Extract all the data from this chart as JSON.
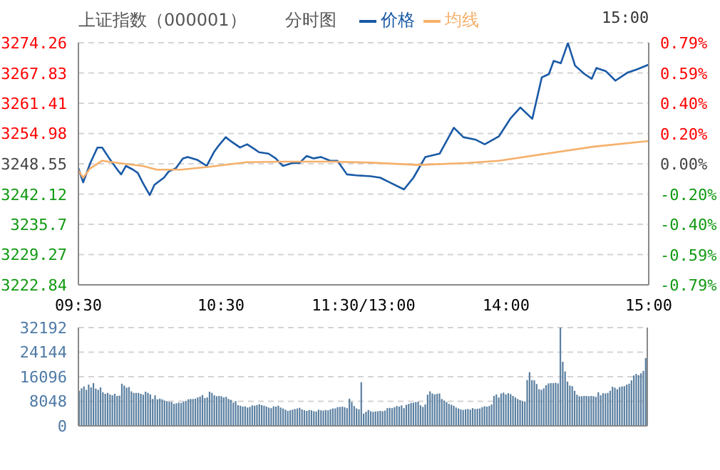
{
  "chart_data": [
    {
      "type": "line",
      "title": "上证指数（000001）",
      "subtitle": "分时图",
      "annotations": [
        "15:00"
      ],
      "legend": "top",
      "grid": "y",
      "marker": "none",
      "line_style": "solid",
      "categories": [
        "09:30",
        null,
        null,
        null,
        null,
        null,
        null,
        null,
        null,
        null,
        null,
        null,
        null,
        null,
        null,
        null,
        null,
        null,
        null,
        null,
        null,
        null,
        null,
        null,
        null,
        null,
        null,
        null,
        null,
        null,
        null,
        null,
        null,
        null,
        null,
        null,
        null,
        null,
        null,
        null,
        null,
        null,
        null,
        null,
        null,
        null,
        null,
        null,
        null,
        null,
        null,
        null,
        null,
        null,
        null,
        null,
        null,
        null,
        null,
        null,
        "10:30",
        null,
        null,
        null,
        null,
        null,
        null,
        null,
        null,
        null,
        null,
        null,
        null,
        null,
        null,
        null,
        null,
        null,
        null,
        null,
        null,
        null,
        null,
        null,
        null,
        null,
        null,
        null,
        null,
        null,
        null,
        null,
        null,
        null,
        null,
        null,
        null,
        null,
        null,
        null,
        null,
        null,
        null,
        null,
        null,
        null,
        null,
        null,
        null,
        null,
        null,
        null,
        null,
        null,
        null,
        null,
        null,
        null,
        null,
        null,
        "11:30/13:00",
        null,
        null,
        null,
        null,
        null,
        null,
        null,
        null,
        null,
        null,
        null,
        null,
        null,
        null,
        null,
        null,
        null,
        null,
        null,
        null,
        null,
        null,
        null,
        null,
        null,
        null,
        null,
        null,
        null,
        null,
        null,
        null,
        null,
        null,
        null,
        null,
        null,
        null,
        null,
        null,
        null,
        null,
        null,
        null,
        null,
        null,
        null,
        null,
        null,
        null,
        null,
        null,
        null,
        null,
        null,
        null,
        null,
        null,
        null,
        "14:00",
        null,
        null,
        null,
        null,
        null,
        null,
        null,
        null,
        null,
        null,
        null,
        null,
        null,
        null,
        null,
        null,
        null,
        null,
        null,
        null,
        null,
        null,
        null,
        null,
        null,
        null,
        null,
        null,
        null,
        null,
        null,
        null,
        null,
        null,
        null,
        null,
        null,
        null,
        null,
        null,
        null,
        null,
        null,
        null,
        null,
        null,
        null,
        null,
        null,
        null,
        null,
        null,
        null,
        null,
        null,
        null,
        null,
        null,
        null,
        "15:00"
      ],
      "ylim": [
        3222.84,
        3274.26
      ],
      "yticks": [
        3222.84,
        3229.27,
        3235.7,
        3242.12,
        3248.55,
        3254.98,
        3261.41,
        3267.83,
        3274.26
      ],
      "y2lim": [
        -0.79,
        0.79
      ],
      "y2ticks": [
        {
          "value": -0.79,
          "label": "-0.79%"
        },
        {
          "value": -0.5925,
          "label": "-0.59%"
        },
        {
          "value": -0.395,
          "label": "-0.40%"
        },
        {
          "value": -0.1975,
          "label": "-0.20%"
        },
        {
          "value": 0,
          "label": "0.00%"
        },
        {
          "value": 0.1975,
          "label": "0.20%"
        },
        {
          "value": 0.395,
          "label": "0.40%"
        },
        {
          "value": 0.5925,
          "label": "0.59%"
        },
        {
          "value": 0.79,
          "label": "0.79%"
        }
      ],
      "series": [
        {
          "name": "价格",
          "color": "#1a5aa6",
          "values": [
            3247.6,
            null,
            3244.6,
            null,
            null,
            3248.7,
            null,
            null,
            3252.0,
            null,
            3252.0,
            null,
            null,
            3249.7,
            null,
            null,
            null,
            3246.9,
            3246.3,
            null,
            3248.1,
            null,
            null,
            3247.3,
            null,
            3246.6,
            null,
            3244.6,
            null,
            null,
            3241.9,
            null,
            3244.1,
            null,
            null,
            null,
            3245.6,
            null,
            3246.9,
            null,
            null,
            3247.6,
            null,
            null,
            3249.7,
            null,
            3250.0,
            null,
            null,
            null,
            3249.4,
            null,
            null,
            null,
            3248.1,
            null,
            null,
            3251.0,
            null,
            3252.4,
            null,
            null,
            3254.2,
            null,
            3253.4,
            null,
            null,
            null,
            3252.0,
            null,
            null,
            3252.7,
            null,
            null,
            3251.7,
            null,
            3251.0,
            null,
            null,
            null,
            3250.7,
            null,
            null,
            3249.7,
            null,
            null,
            3248.1,
            null,
            null,
            null,
            3248.7,
            null,
            null,
            3248.7,
            null,
            null,
            3250.2,
            null,
            null,
            3249.7,
            null,
            null,
            3250.0,
            null,
            null,
            null,
            3249.2,
            null,
            null,
            3249.2,
            null,
            null,
            null,
            3246.3,
            null,
            null,
            null,
            3246.1,
            null,
            null,
            null,
            null,
            null,
            3245.9,
            null,
            null,
            null,
            3245.6,
            null,
            null,
            null,
            3244.6,
            null,
            null,
            null,
            null,
            null,
            3243.1,
            null,
            null,
            null,
            3245.6,
            null,
            null,
            null,
            null,
            3250.0,
            null,
            null,
            null,
            null,
            null,
            3250.7,
            null,
            null,
            null,
            null,
            null,
            3256.2,
            null,
            null,
            null,
            3254.2,
            null,
            null,
            null,
            null,
            3253.7,
            null,
            null,
            null,
            3252.7,
            null,
            null,
            null,
            null,
            null,
            3254.4,
            null,
            null,
            null,
            null,
            3258.3,
            null,
            null,
            null,
            3260.5,
            null,
            null,
            null,
            null,
            3258.1,
            null,
            null,
            null,
            3266.9,
            null,
            null,
            3267.6,
            null,
            3270.4,
            null,
            null,
            3269.9,
            null,
            null,
            3274.2,
            null,
            null,
            3269.4,
            null,
            null,
            null,
            3267.6,
            null,
            null,
            3266.6,
            null,
            3268.9,
            null,
            null,
            null,
            3268.2,
            null,
            null,
            null,
            3266.2,
            null,
            null,
            null,
            null,
            3267.9,
            null,
            null,
            null,
            3268.6,
            null,
            null,
            null,
            null,
            3269.6
          ]
        },
        {
          "name": "均线",
          "color": "#f5b06b",
          "values": [
            3247.1,
            null,
            3245.6,
            null,
            null,
            3247.6,
            null,
            null,
            null,
            null,
            3249.2,
            null,
            null,
            null,
            null,
            null,
            null,
            3248.7,
            null,
            null,
            null,
            null,
            null,
            null,
            null,
            null,
            null,
            3248.1,
            null,
            null,
            null,
            null,
            null,
            3247.3,
            null,
            null,
            null,
            null,
            null,
            null,
            null,
            null,
            null,
            3247.3,
            null,
            null,
            null,
            null,
            null,
            null,
            null,
            null,
            null,
            null,
            null,
            3247.9,
            null,
            null,
            null,
            null,
            null,
            null,
            null,
            null,
            null,
            null,
            null,
            null,
            null,
            null,
            null,
            3248.9,
            null,
            null,
            null,
            null,
            null,
            null,
            null,
            null,
            null,
            null,
            null,
            null,
            null,
            null,
            null,
            3249.0,
            null,
            null,
            null,
            null,
            null,
            null,
            null,
            null,
            null,
            null,
            null,
            null,
            null,
            null,
            null,
            null,
            null,
            null,
            null,
            3249.0,
            null,
            null,
            null,
            null,
            null,
            null,
            null,
            null,
            null,
            null,
            null,
            null,
            null,
            null,
            null,
            3248.8,
            null,
            null,
            null,
            null,
            null,
            null,
            null,
            null,
            null,
            null,
            null,
            null,
            null,
            null,
            null,
            null,
            null,
            null,
            null,
            3248.3,
            null,
            null,
            null,
            null,
            null,
            null,
            null,
            null,
            null,
            null,
            null,
            null,
            null,
            null,
            null,
            null,
            null,
            null,
            null,
            3248.7,
            null,
            null,
            null,
            null,
            null,
            null,
            null,
            null,
            null,
            null,
            null,
            null,
            null,
            3249.2,
            null,
            null,
            null,
            null,
            null,
            null,
            null,
            null,
            null,
            null,
            null,
            null,
            null,
            null,
            null,
            null,
            null,
            null,
            null,
            3250.7,
            null,
            null,
            null,
            null,
            null,
            null,
            null,
            null,
            null,
            null,
            null,
            null,
            null,
            null,
            null,
            null,
            null,
            null,
            null,
            3252.2,
            null,
            null,
            null,
            null,
            null,
            null,
            null,
            null,
            null,
            null,
            null,
            null,
            null,
            null,
            null,
            null,
            null,
            null,
            null,
            null,
            null,
            null,
            3253.4
          ]
        }
      ]
    },
    {
      "type": "bar",
      "grid": "y",
      "tick_labels": "y",
      "categories": [
        null,
        null,
        null,
        null,
        null,
        null,
        null,
        null,
        null,
        null,
        null,
        null,
        null,
        null,
        null,
        null,
        null,
        null,
        null,
        null,
        null,
        null,
        null,
        null,
        null,
        null,
        null,
        null,
        null,
        null,
        null,
        null,
        null,
        null,
        null,
        null,
        null,
        null,
        null,
        null,
        null,
        null,
        null,
        null,
        null,
        null,
        null,
        null,
        null,
        null,
        null,
        null,
        null,
        null,
        null,
        null,
        null,
        null,
        null,
        null,
        null,
        null,
        null,
        null,
        null,
        null,
        null,
        null,
        null,
        null,
        null,
        null,
        null,
        null,
        null,
        null,
        null,
        null,
        null,
        null,
        null,
        null,
        null,
        null,
        null,
        null,
        null,
        null,
        null,
        null,
        null,
        null,
        null,
        null,
        null,
        null,
        null,
        null,
        null,
        null,
        null,
        null,
        null,
        null,
        null,
        null,
        null,
        null,
        null,
        null,
        null,
        null,
        null,
        null,
        null,
        null,
        null,
        null,
        null,
        null,
        null,
        null,
        null,
        null,
        null,
        null,
        null,
        null,
        null,
        null,
        null,
        null,
        null,
        null,
        null,
        null,
        null,
        null,
        null,
        null,
        null,
        null,
        null,
        null,
        null,
        null,
        null,
        null,
        null,
        null,
        null,
        null,
        null,
        null,
        null,
        null,
        null,
        null,
        null,
        null,
        null,
        null,
        null,
        null,
        null,
        null,
        null,
        null,
        null,
        null,
        null,
        null,
        null,
        null,
        null,
        null,
        null,
        null,
        null,
        null,
        null,
        null,
        null,
        null,
        null,
        null,
        null,
        null,
        null,
        null,
        null,
        null,
        null,
        null,
        null,
        null,
        null,
        null,
        null,
        null,
        null,
        null,
        null,
        null,
        null,
        null,
        null,
        null,
        null,
        null,
        null,
        null,
        null,
        null,
        null,
        null,
        null,
        null,
        null,
        null,
        null,
        null,
        null,
        null,
        null,
        null,
        null,
        null,
        null,
        null,
        null,
        null,
        null,
        null,
        null,
        null,
        null,
        null,
        null,
        null
      ],
      "ylim": [
        0,
        32192
      ],
      "yticks": [
        0,
        8048,
        16096,
        24144,
        32192
      ],
      "color": "#5a7fa0",
      "values": [
        11500,
        12300,
        12900,
        11800,
        13500,
        12600,
        14000,
        12200,
        11800,
        12600,
        11000,
        10500,
        10800,
        10300,
        10000,
        10500,
        9800,
        9900,
        13800,
        13200,
        12500,
        12700,
        11300,
        10800,
        10800,
        10800,
        10500,
        10200,
        11200,
        10800,
        10300,
        8800,
        10000,
        8700,
        8900,
        8700,
        8300,
        8100,
        7900,
        7800,
        7200,
        7400,
        7600,
        7500,
        7900,
        8200,
        8700,
        8800,
        8800,
        8900,
        9300,
        9600,
        10100,
        9100,
        9300,
        11200,
        10800,
        10000,
        9700,
        9800,
        9700,
        9300,
        9500,
        8800,
        8500,
        7600,
        8100,
        6800,
        6600,
        6300,
        6400,
        6000,
        6200,
        6700,
        6600,
        6800,
        7100,
        6800,
        6600,
        6300,
        6000,
        5800,
        6400,
        6300,
        6600,
        6000,
        5700,
        5300,
        4900,
        5100,
        5300,
        5500,
        5700,
        5900,
        5400,
        5100,
        4900,
        5200,
        5100,
        4800,
        4700,
        5300,
        5100,
        5000,
        5200,
        5100,
        5400,
        5700,
        5700,
        6100,
        6200,
        6300,
        6100,
        5800,
        8900,
        7800,
        6500,
        5700,
        5400,
        14300,
        4000,
        4600,
        5200,
        4800,
        4600,
        4700,
        4800,
        4900,
        4800,
        5000,
        5800,
        5900,
        5800,
        6100,
        6500,
        6300,
        6700,
        5800,
        6900,
        7200,
        7500,
        7600,
        7800,
        7900,
        6700,
        6200,
        7000,
        10200,
        11300,
        10600,
        10300,
        10500,
        10600,
        8800,
        8300,
        7800,
        7200,
        6900,
        6600,
        6000,
        5700,
        5400,
        5200,
        5400,
        5500,
        5300,
        5800,
        5500,
        5600,
        5700,
        6100,
        6400,
        6300,
        6500,
        7000,
        9800,
        10300,
        9300,
        10600,
        10900,
        10300,
        10700,
        10400,
        9800,
        9300,
        8800,
        8400,
        8100,
        8000,
        15000,
        17600,
        15000,
        14900,
        13700,
        12000,
        11800,
        12300,
        13300,
        13900,
        14000,
        14000,
        14100,
        13900,
        32192,
        21000,
        17800,
        14500,
        13200,
        13000,
        11500,
        10200,
        9700,
        9700,
        9800,
        9800,
        9700,
        9800,
        9700,
        9500,
        11000,
        10000,
        10700,
        10600,
        10800,
        11500,
        12800,
        12500,
        12000,
        12700,
        12900,
        13000,
        13500,
        13800,
        14900,
        16500,
        17000,
        16600,
        17200,
        18000,
        22200
      ]
    }
  ]
}
